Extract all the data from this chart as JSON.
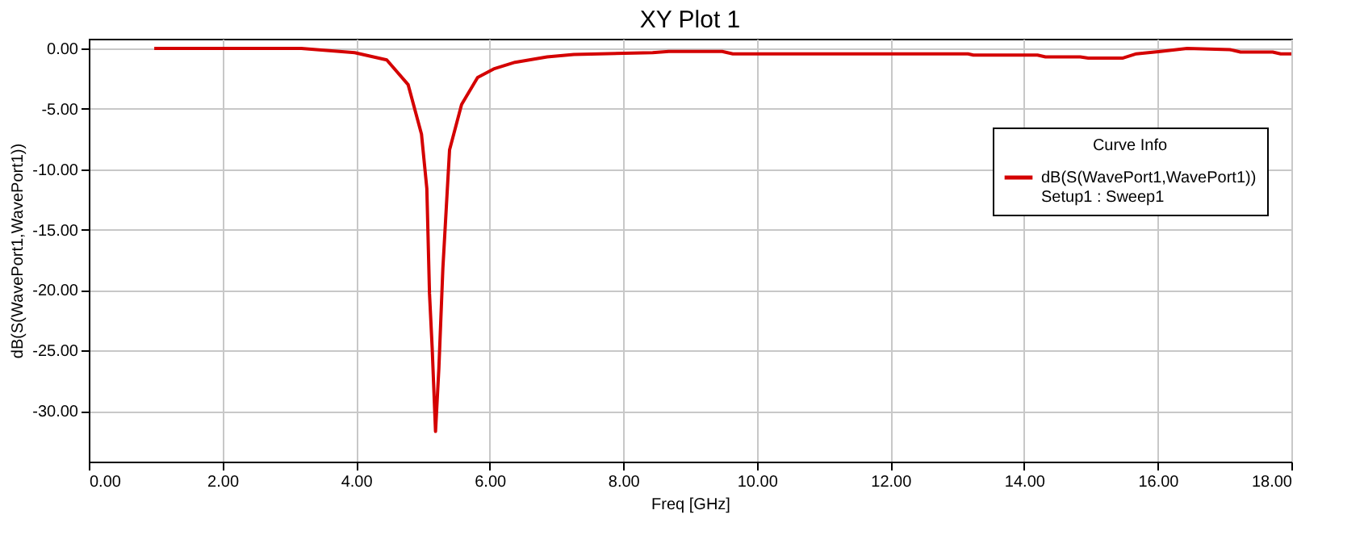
{
  "chart_data": {
    "type": "line",
    "title": "XY Plot 1",
    "xlabel": "Freq [GHz]",
    "ylabel": "dB(S(WavePort1,WavePort1))",
    "legend_title": "Curve Info",
    "x": [
      0.98,
      3.18,
      3.98,
      4.46,
      4.78,
      4.98,
      5.06,
      5.1,
      5.14,
      5.19,
      5.24,
      5.3,
      5.35,
      5.4,
      5.58,
      5.82,
      6.06,
      6.38,
      6.86,
      7.26,
      8.44,
      8.68,
      9.48,
      9.64,
      13.16,
      13.24,
      14.2,
      14.32,
      14.84,
      14.96,
      15.48,
      15.68,
      16.04,
      16.44,
      17.08,
      17.24,
      17.72,
      17.84,
      18.0
    ],
    "series": [
      {
        "name": "dB(S(WavePort1,WavePort1))",
        "color": "#d40000",
        "values": [
          0.0,
          0.0,
          -0.35,
          -0.95,
          -3.0,
          -7.1,
          -11.6,
          -20.3,
          -24.8,
          -31.7,
          -26.5,
          -18.2,
          -13.3,
          -8.4,
          -4.65,
          -2.4,
          -1.7,
          -1.15,
          -0.7,
          -0.5,
          -0.35,
          -0.25,
          -0.25,
          -0.45,
          -0.45,
          -0.55,
          -0.55,
          -0.7,
          -0.7,
          -0.8,
          -0.8,
          -0.45,
          -0.25,
          0.0,
          -0.1,
          -0.3,
          -0.3,
          -0.45,
          -0.45
        ]
      }
    ],
    "annotations": [
      "Setup1 : Sweep1"
    ],
    "xlim": [
      0,
      18
    ],
    "ylim": [
      -34.2,
      0.8
    ],
    "xticks": [
      {
        "value": 0,
        "label": "0.00"
      },
      {
        "value": 2,
        "label": "2.00"
      },
      {
        "value": 4,
        "label": "4.00"
      },
      {
        "value": 6,
        "label": "6.00"
      },
      {
        "value": 8,
        "label": "8.00"
      },
      {
        "value": 10,
        "label": "10.00"
      },
      {
        "value": 12,
        "label": "12.00"
      },
      {
        "value": 14,
        "label": "14.00"
      },
      {
        "value": 16,
        "label": "16.00"
      },
      {
        "value": 18,
        "label": "18.00"
      }
    ],
    "yticks": [
      {
        "value": 0,
        "label": "0.00"
      },
      {
        "value": -5,
        "label": "-5.00"
      },
      {
        "value": -10,
        "label": "-10.00"
      },
      {
        "value": -15,
        "label": "-15.00"
      },
      {
        "value": -20,
        "label": "-20.00"
      },
      {
        "value": -25,
        "label": "-25.00"
      },
      {
        "value": -30,
        "label": "-30.00"
      }
    ],
    "grid": true,
    "legend": "right",
    "marker": "none",
    "line_style": "solid"
  }
}
